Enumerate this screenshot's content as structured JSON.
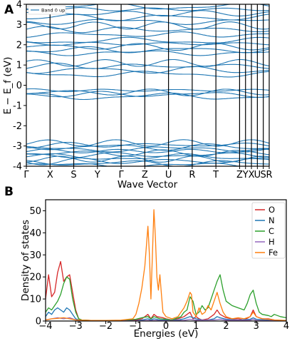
{
  "panels": {
    "a": "A",
    "b": "B"
  },
  "chart_data": [
    {
      "type": "line",
      "xlabel": "Wave Vector",
      "ylabel": "E − E_f (eV)",
      "ylim": [
        -4,
        4
      ],
      "yticks": [
        -4,
        -3,
        -2,
        -1,
        0,
        1,
        2,
        3,
        4
      ],
      "kpoints": [
        "Γ",
        "X",
        "S",
        "Y",
        "Γ",
        "Z",
        "U",
        "R",
        "T",
        "Z",
        "Y",
        "X",
        "U",
        "S",
        "R"
      ],
      "kpath": [
        0,
        1,
        2,
        3,
        4,
        5,
        6,
        7,
        8,
        9,
        9.25,
        9.5,
        9.75,
        10,
        10.25
      ],
      "legend": {
        "label": "Band 0 up",
        "position": "top-left"
      },
      "grid": false,
      "color": "#1f77b4",
      "band_levels": [
        -3.95,
        -3.85,
        -3.75,
        -3.65,
        -3.55,
        -3.45,
        -3.35,
        -3.25,
        -3.15,
        -3.05,
        -2.95,
        -2.85,
        -0.55,
        -0.45,
        -0.35,
        -0.25,
        0.55,
        0.75,
        0.95,
        1.1,
        1.6,
        1.75,
        1.9,
        2.05,
        2.2,
        2.5,
        2.75,
        2.95,
        3.15,
        3.35,
        3.55,
        3.75,
        3.9
      ]
    },
    {
      "type": "line",
      "xlabel": "Energies (eV)",
      "ylabel": "Density of states",
      "xlim": [
        -4,
        4
      ],
      "ylim": [
        0,
        55
      ],
      "xticks": [
        -4,
        -3,
        -2,
        -1,
        0,
        1,
        2,
        3,
        4
      ],
      "yticks": [
        0,
        10,
        20,
        30,
        40,
        50
      ],
      "legend": {
        "position": "top-right"
      },
      "grid": false,
      "series": [
        {
          "name": "O",
          "color": "#d62728",
          "points": [
            [
              -4,
              10
            ],
            [
              -3.9,
              21
            ],
            [
              -3.8,
              11
            ],
            [
              -3.7,
              13
            ],
            [
              -3.6,
              22
            ],
            [
              -3.5,
              27
            ],
            [
              -3.4,
              18
            ],
            [
              -3.3,
              20
            ],
            [
              -3.2,
              21
            ],
            [
              -3.1,
              13
            ],
            [
              -3.0,
              5
            ],
            [
              -2.9,
              1
            ],
            [
              -2.8,
              0.5
            ],
            [
              -2.5,
              0.3
            ],
            [
              -2,
              0.2
            ],
            [
              -1.5,
              0.2
            ],
            [
              -1.0,
              0.5
            ],
            [
              -0.8,
              1
            ],
            [
              -0.6,
              3
            ],
            [
              -0.5,
              1
            ],
            [
              -0.4,
              3
            ],
            [
              -0.3,
              2
            ],
            [
              -0.1,
              1.5
            ],
            [
              0,
              1
            ],
            [
              0.2,
              0.5
            ],
            [
              0.4,
              1
            ],
            [
              0.6,
              2
            ],
            [
              0.8,
              4
            ],
            [
              0.9,
              1
            ],
            [
              1.0,
              2
            ],
            [
              1.1,
              1
            ],
            [
              1.2,
              0.5
            ],
            [
              1.4,
              1
            ],
            [
              1.6,
              3
            ],
            [
              1.7,
              5
            ],
            [
              1.8,
              3
            ],
            [
              2.0,
              1.5
            ],
            [
              2.2,
              1
            ],
            [
              2.4,
              1
            ],
            [
              2.6,
              0.5
            ],
            [
              2.8,
              2
            ],
            [
              2.9,
              5
            ],
            [
              3.0,
              2
            ],
            [
              3.2,
              1
            ],
            [
              3.4,
              1
            ],
            [
              3.6,
              0.5
            ],
            [
              3.8,
              0.3
            ],
            [
              4,
              0.3
            ]
          ]
        },
        {
          "name": "N",
          "color": "#1f77b4",
          "points": [
            [
              -4,
              2
            ],
            [
              -3.9,
              4
            ],
            [
              -3.8,
              3
            ],
            [
              -3.7,
              5
            ],
            [
              -3.6,
              6
            ],
            [
              -3.5,
              5
            ],
            [
              -3.4,
              4
            ],
            [
              -3.3,
              6
            ],
            [
              -3.2,
              5
            ],
            [
              -3.1,
              3
            ],
            [
              -3.0,
              1
            ],
            [
              -2.9,
              0.5
            ],
            [
              -2.5,
              0.2
            ],
            [
              -2,
              0.1
            ],
            [
              -1,
              0.2
            ],
            [
              -0.8,
              0.5
            ],
            [
              -0.6,
              1
            ],
            [
              -0.5,
              0.5
            ],
            [
              -0.4,
              1
            ],
            [
              -0.2,
              0.5
            ],
            [
              0,
              0.5
            ],
            [
              0.4,
              0.5
            ],
            [
              0.6,
              1
            ],
            [
              0.8,
              2
            ],
            [
              1.0,
              1
            ],
            [
              1.2,
              0.5
            ],
            [
              1.4,
              0.5
            ],
            [
              1.6,
              1
            ],
            [
              1.7,
              2
            ],
            [
              1.8,
              1.5
            ],
            [
              2.0,
              0.8
            ],
            [
              2.4,
              0.5
            ],
            [
              2.8,
              0.8
            ],
            [
              2.9,
              1.5
            ],
            [
              3.0,
              0.8
            ],
            [
              3.4,
              0.5
            ],
            [
              4,
              0.2
            ]
          ]
        },
        {
          "name": "C",
          "color": "#2ca02c",
          "points": [
            [
              -4,
              4
            ],
            [
              -3.9,
              6
            ],
            [
              -3.8,
              5
            ],
            [
              -3.7,
              7
            ],
            [
              -3.6,
              9
            ],
            [
              -3.5,
              12
            ],
            [
              -3.4,
              17
            ],
            [
              -3.3,
              20
            ],
            [
              -3.2,
              19
            ],
            [
              -3.1,
              10
            ],
            [
              -3.0,
              4
            ],
            [
              -2.9,
              1
            ],
            [
              -2.8,
              0.5
            ],
            [
              -2.5,
              0.3
            ],
            [
              -2,
              0.2
            ],
            [
              -1.5,
              0.3
            ],
            [
              -1.0,
              0.8
            ],
            [
              -0.8,
              1.5
            ],
            [
              -0.6,
              2
            ],
            [
              -0.5,
              1
            ],
            [
              -0.4,
              2
            ],
            [
              -0.2,
              1
            ],
            [
              0,
              0.8
            ],
            [
              0.2,
              0.5
            ],
            [
              0.4,
              1.5
            ],
            [
              0.5,
              2
            ],
            [
              0.6,
              4
            ],
            [
              0.7,
              5
            ],
            [
              0.8,
              11
            ],
            [
              0.9,
              9
            ],
            [
              1.0,
              3
            ],
            [
              1.1,
              4
            ],
            [
              1.2,
              7
            ],
            [
              1.3,
              5
            ],
            [
              1.4,
              6
            ],
            [
              1.5,
              10
            ],
            [
              1.6,
              14
            ],
            [
              1.7,
              18
            ],
            [
              1.8,
              21
            ],
            [
              1.9,
              14
            ],
            [
              2.0,
              9
            ],
            [
              2.1,
              8
            ],
            [
              2.2,
              7
            ],
            [
              2.4,
              6
            ],
            [
              2.6,
              5
            ],
            [
              2.7,
              8
            ],
            [
              2.8,
              12
            ],
            [
              2.9,
              14
            ],
            [
              3.0,
              8
            ],
            [
              3.1,
              4
            ],
            [
              3.2,
              3
            ],
            [
              3.4,
              2.5
            ],
            [
              3.5,
              2
            ],
            [
              3.6,
              3
            ],
            [
              3.8,
              2
            ],
            [
              4,
              1.5
            ]
          ]
        },
        {
          "name": "H",
          "color": "#9467bd",
          "points": [
            [
              -4,
              0.5
            ],
            [
              -3.8,
              1
            ],
            [
              -3.6,
              1.5
            ],
            [
              -3.4,
              1
            ],
            [
              -3.2,
              1.5
            ],
            [
              -3.0,
              0.5
            ],
            [
              -2.8,
              0.2
            ],
            [
              -2,
              0.1
            ],
            [
              -1,
              0.1
            ],
            [
              -0.6,
              0.3
            ],
            [
              -0.4,
              0.3
            ],
            [
              0,
              0.2
            ],
            [
              0.6,
              0.3
            ],
            [
              0.8,
              0.8
            ],
            [
              1.0,
              0.4
            ],
            [
              1.6,
              0.5
            ],
            [
              1.8,
              0.8
            ],
            [
              2.0,
              0.4
            ],
            [
              2.8,
              0.4
            ],
            [
              2.9,
              0.8
            ],
            [
              3.0,
              0.3
            ],
            [
              4,
              0.1
            ]
          ]
        },
        {
          "name": "Fe",
          "color": "#ff7f0e",
          "points": [
            [
              -4,
              0.5
            ],
            [
              -3.8,
              1
            ],
            [
              -3.6,
              1.2
            ],
            [
              -3.4,
              1.5
            ],
            [
              -3.2,
              1
            ],
            [
              -3.0,
              0.5
            ],
            [
              -2.5,
              0.3
            ],
            [
              -2,
              0.3
            ],
            [
              -1.5,
              0.4
            ],
            [
              -1.1,
              1
            ],
            [
              -1.0,
              3
            ],
            [
              -0.9,
              8
            ],
            [
              -0.8,
              15
            ],
            [
              -0.7,
              25
            ],
            [
              -0.6,
              43
            ],
            [
              -0.55,
              30
            ],
            [
              -0.5,
              10
            ],
            [
              -0.45,
              30
            ],
            [
              -0.4,
              50.5
            ],
            [
              -0.35,
              38
            ],
            [
              -0.3,
              20
            ],
            [
              -0.25,
              14
            ],
            [
              -0.2,
              21
            ],
            [
              -0.15,
              12
            ],
            [
              -0.1,
              4
            ],
            [
              0,
              2
            ],
            [
              0.2,
              1
            ],
            [
              0.4,
              2
            ],
            [
              0.5,
              4
            ],
            [
              0.6,
              6
            ],
            [
              0.7,
              9
            ],
            [
              0.8,
              13
            ],
            [
              0.85,
              12
            ],
            [
              0.9,
              4
            ],
            [
              1.0,
              2
            ],
            [
              1.1,
              6
            ],
            [
              1.2,
              3
            ],
            [
              1.3,
              4
            ],
            [
              1.4,
              7
            ],
            [
              1.5,
              5
            ],
            [
              1.6,
              9
            ],
            [
              1.7,
              13
            ],
            [
              1.8,
              8
            ],
            [
              1.9,
              4
            ],
            [
              2.0,
              2
            ],
            [
              2.2,
              1
            ],
            [
              2.4,
              1.5
            ],
            [
              2.6,
              1
            ],
            [
              2.8,
              2
            ],
            [
              2.9,
              4
            ],
            [
              3.0,
              2
            ],
            [
              3.2,
              1
            ],
            [
              3.4,
              0.8
            ],
            [
              3.6,
              0.5
            ],
            [
              4,
              0.3
            ]
          ]
        }
      ]
    }
  ]
}
